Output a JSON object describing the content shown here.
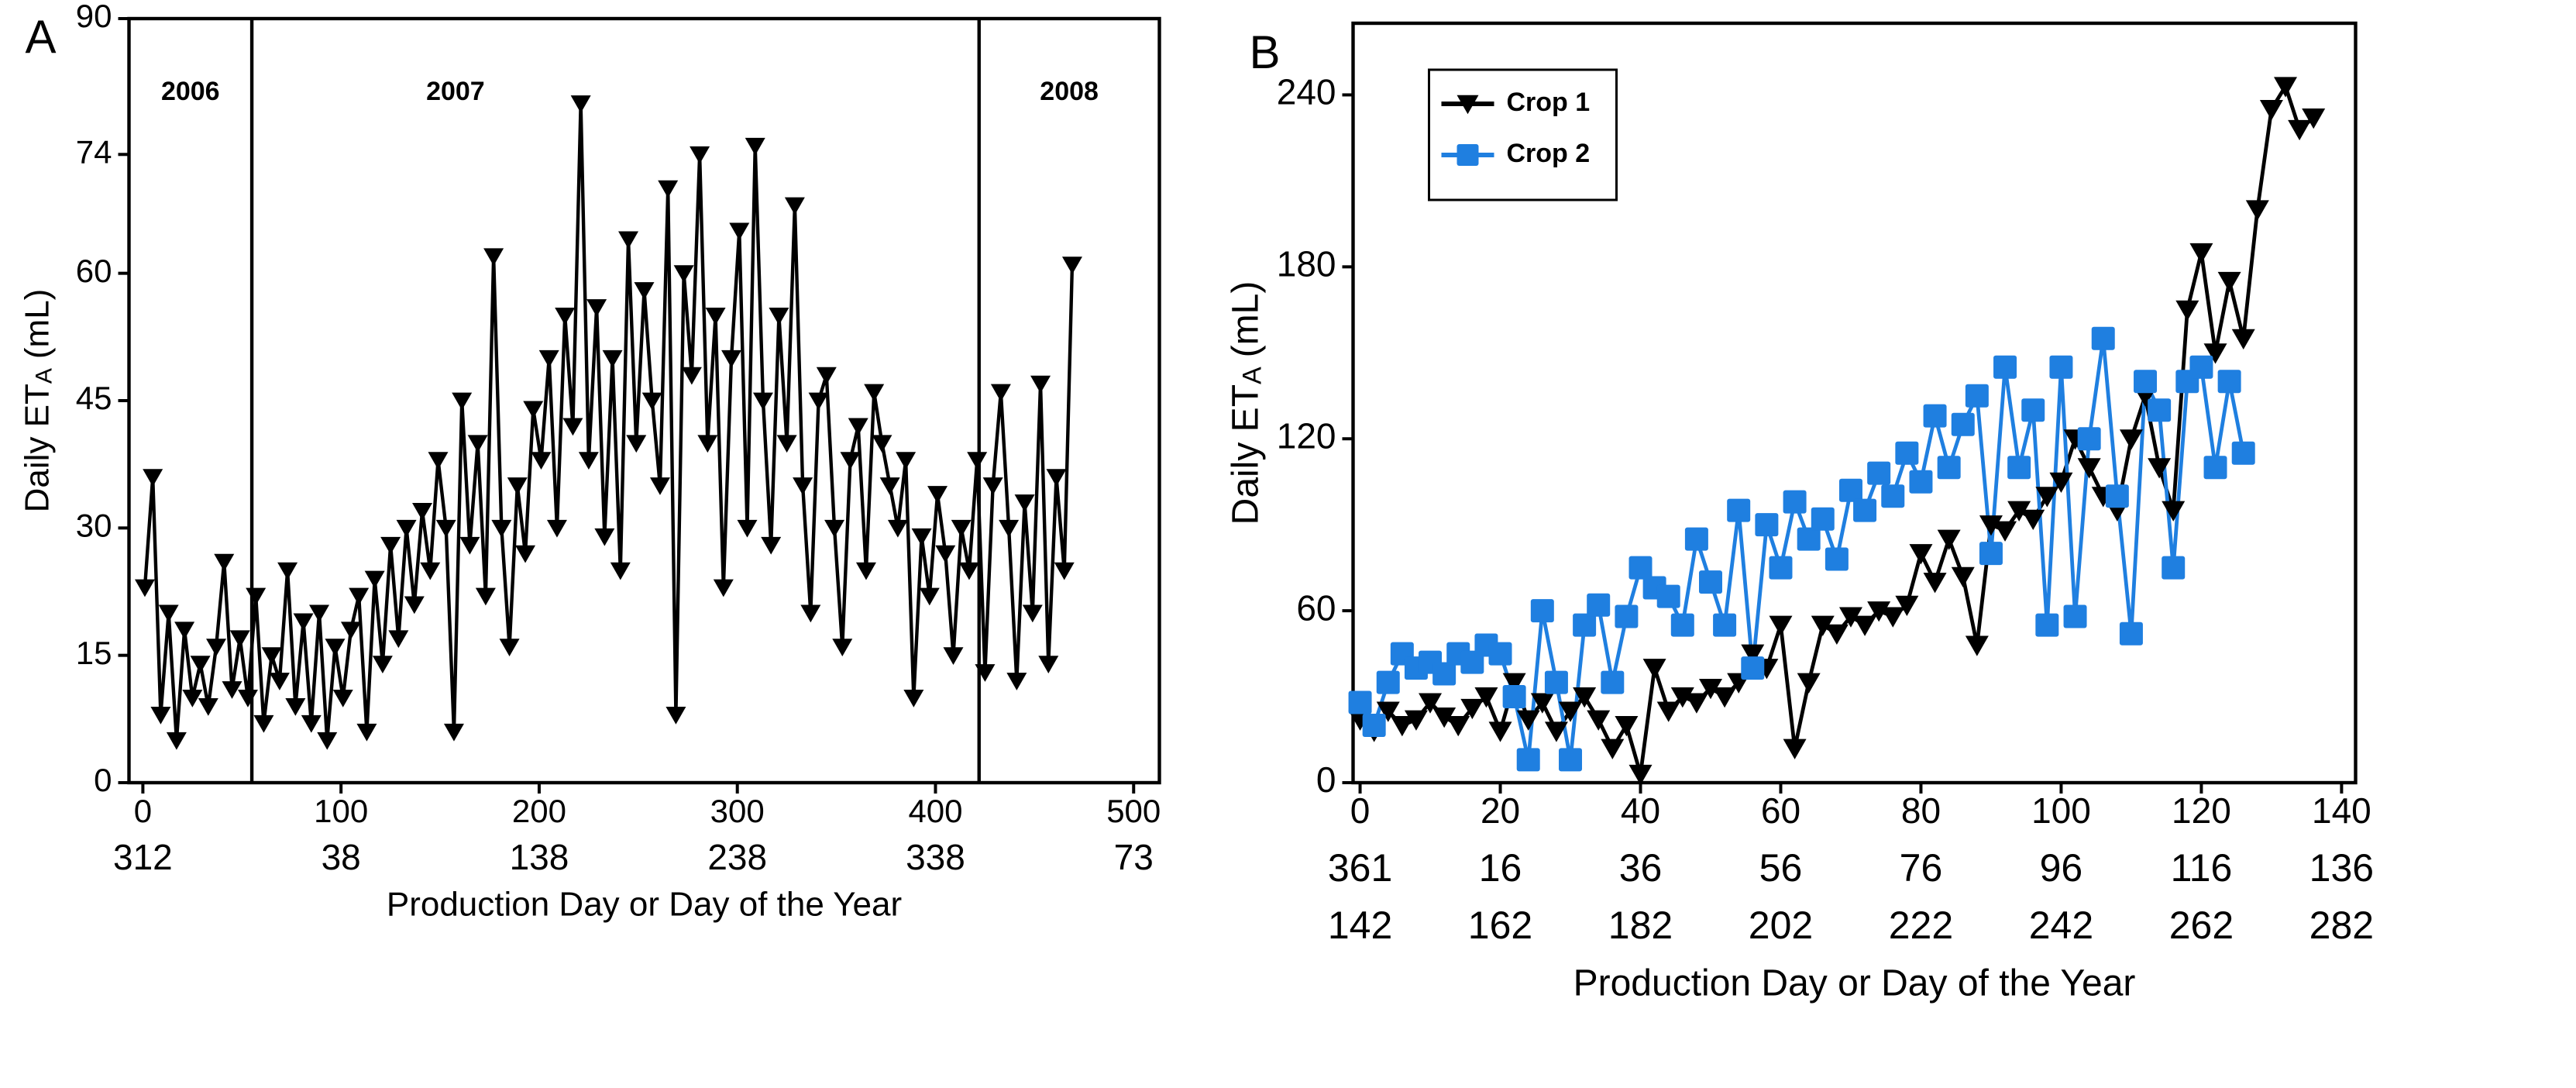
{
  "chart_data": [
    {
      "type": "line",
      "panel_label": "A",
      "ylabel": {
        "main": "Daily ET",
        "sub": "A",
        "unit": "(mL)"
      },
      "xlabel": "Production Day or Day of the Year",
      "xlim": [
        -7,
        513
      ],
      "ylim": [
        0,
        90
      ],
      "xticks": [
        0,
        100,
        200,
        300,
        400,
        500
      ],
      "yticks": [
        0,
        15,
        30,
        45,
        60,
        74,
        90
      ],
      "doy_rows": [
        {
          "color": "#000000",
          "labels": [
            312,
            38,
            138,
            238,
            338,
            73
          ]
        }
      ],
      "year_dividers": [
        55,
        422
      ],
      "year_labels": [
        "2006",
        "2007",
        "2008"
      ],
      "x": [
        1,
        5,
        9,
        13,
        17,
        21,
        25,
        29,
        33,
        37,
        41,
        45,
        49,
        53,
        57,
        61,
        65,
        69,
        73,
        77,
        81,
        85,
        89,
        93,
        97,
        101,
        105,
        109,
        113,
        117,
        121,
        125,
        129,
        133,
        137,
        141,
        145,
        149,
        153,
        157,
        161,
        165,
        169,
        173,
        177,
        181,
        185,
        189,
        193,
        197,
        201,
        205,
        209,
        213,
        217,
        221,
        225,
        229,
        233,
        237,
        241,
        245,
        249,
        253,
        257,
        261,
        265,
        269,
        273,
        277,
        281,
        285,
        289,
        293,
        297,
        301,
        305,
        309,
        313,
        317,
        321,
        325,
        329,
        333,
        337,
        341,
        345,
        349,
        353,
        357,
        361,
        365,
        369,
        373,
        377,
        381,
        385,
        389,
        393,
        397,
        401,
        405,
        409,
        413,
        417,
        421,
        425,
        429,
        433,
        437,
        441,
        445,
        449,
        453,
        457,
        461,
        465,
        469
      ],
      "series": [
        {
          "color": "#000000",
          "values": [
            23,
            36,
            8,
            20,
            5,
            18,
            10,
            14,
            9,
            16,
            26,
            11,
            17,
            10,
            22,
            7,
            15,
            12,
            25,
            9,
            19,
            7,
            20,
            5,
            16,
            10,
            18,
            22,
            6,
            24,
            14,
            28,
            17,
            30,
            21,
            32,
            25,
            38,
            30,
            6,
            45,
            28,
            40,
            22,
            62,
            30,
            16,
            35,
            27,
            44,
            38,
            50,
            30,
            55,
            42,
            80,
            38,
            56,
            29,
            50,
            25,
            64,
            40,
            58,
            45,
            35,
            70,
            8,
            60,
            48,
            74,
            40,
            55,
            23,
            50,
            65,
            30,
            75,
            45,
            28,
            55,
            40,
            68,
            35,
            20,
            45,
            48,
            30,
            16,
            38,
            42,
            25,
            46,
            40,
            35,
            30,
            38,
            10,
            29,
            22,
            34,
            27,
            15,
            30,
            25,
            38,
            13,
            35,
            46,
            30,
            12,
            33,
            20,
            47,
            14,
            36,
            25,
            61
          ]
        }
      ]
    },
    {
      "type": "line",
      "panel_label": "B",
      "ylabel": {
        "main": "Daily ET",
        "sub": "A",
        "unit": "(mL)"
      },
      "xlabel": "Production Day or Day of the Year",
      "xlim": [
        -1,
        142
      ],
      "ylim": [
        0,
        265
      ],
      "xticks": [
        0,
        20,
        40,
        60,
        80,
        100,
        120,
        140
      ],
      "yticks": [
        0,
        60,
        120,
        180,
        240
      ],
      "doy_rows": [
        {
          "color": "#000000",
          "labels": [
            361,
            16,
            36,
            56,
            76,
            96,
            116,
            136
          ]
        },
        {
          "color": "#1f7fe0",
          "labels": [
            142,
            162,
            182,
            202,
            222,
            242,
            262,
            282
          ]
        }
      ],
      "legend": "upper left",
      "x": [
        0,
        2,
        4,
        6,
        8,
        10,
        12,
        14,
        16,
        18,
        20,
        22,
        24,
        26,
        28,
        30,
        32,
        34,
        36,
        38,
        40,
        42,
        44,
        46,
        48,
        50,
        52,
        54,
        56,
        58,
        60,
        62,
        64,
        66,
        68,
        70,
        72,
        74,
        76,
        78,
        80,
        82,
        84,
        86,
        88,
        90,
        92,
        94,
        96,
        98,
        100,
        102,
        104,
        106,
        108,
        110,
        112,
        114,
        116,
        118,
        120,
        122,
        124,
        126,
        128,
        130,
        132,
        134,
        136
      ],
      "series": [
        {
          "name": "Crop 1",
          "color": "#000000",
          "marker": "triangle",
          "values": [
            22,
            18,
            25,
            20,
            22,
            28,
            23,
            20,
            26,
            30,
            18,
            35,
            22,
            28,
            18,
            25,
            30,
            22,
            12,
            20,
            3,
            40,
            25,
            30,
            28,
            33,
            30,
            35,
            45,
            40,
            55,
            12,
            35,
            55,
            52,
            58,
            55,
            60,
            58,
            62,
            80,
            70,
            85,
            72,
            48,
            90,
            88,
            95,
            92,
            100,
            105,
            120,
            110,
            100,
            95,
            120,
            135,
            110,
            95,
            165,
            185,
            150,
            175,
            155,
            200,
            235,
            243,
            228,
            232
          ]
        },
        {
          "name": "Crop 2",
          "color": "#1f7fe0",
          "marker": "square",
          "values": [
            28,
            20,
            35,
            45,
            40,
            42,
            38,
            45,
            42,
            48,
            45,
            30,
            8,
            60,
            35,
            8,
            55,
            62,
            35,
            58,
            75,
            68,
            65,
            55,
            85,
            70,
            55,
            95,
            40,
            90,
            75,
            98,
            85,
            92,
            78,
            102,
            95,
            108,
            100,
            115,
            105,
            128,
            110,
            125,
            135,
            80,
            145,
            110,
            130,
            55,
            145,
            58,
            120,
            155,
            100,
            52,
            140,
            130,
            75,
            140,
            145,
            110,
            140,
            115,
            null,
            null,
            null,
            null,
            null
          ]
        }
      ]
    }
  ]
}
